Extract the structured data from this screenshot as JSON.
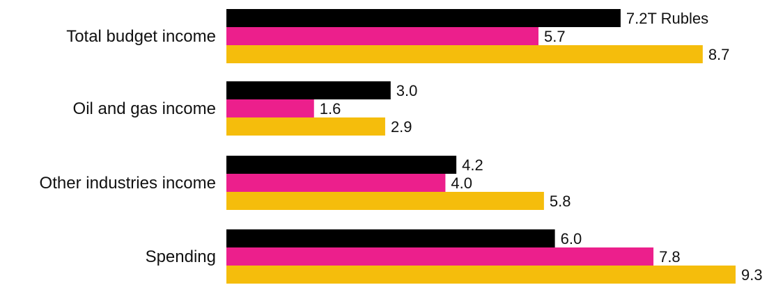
{
  "chart_data": {
    "type": "bar",
    "orientation": "horizontal",
    "categories": [
      "Total budget income",
      "Oil and gas income",
      "Other industries income",
      "Spending"
    ],
    "series": [
      {
        "color": "#000000",
        "values": [
          7.2,
          3.0,
          4.2,
          6.0
        ]
      },
      {
        "color": "#ec1f8c",
        "values": [
          5.7,
          1.6,
          4.0,
          7.8
        ]
      },
      {
        "color": "#f5bd0c",
        "values": [
          8.7,
          2.9,
          5.8,
          9.3
        ]
      }
    ],
    "value_labels": [
      [
        "7.2T Rubles",
        "5.7",
        "8.7"
      ],
      [
        "3.0",
        "1.6",
        "2.9"
      ],
      [
        "4.2",
        "4.0",
        "5.8"
      ],
      [
        "6.0",
        "7.8",
        "9.3"
      ]
    ],
    "legend": "none",
    "grid": false,
    "xlim": [
      0,
      9.3
    ]
  }
}
